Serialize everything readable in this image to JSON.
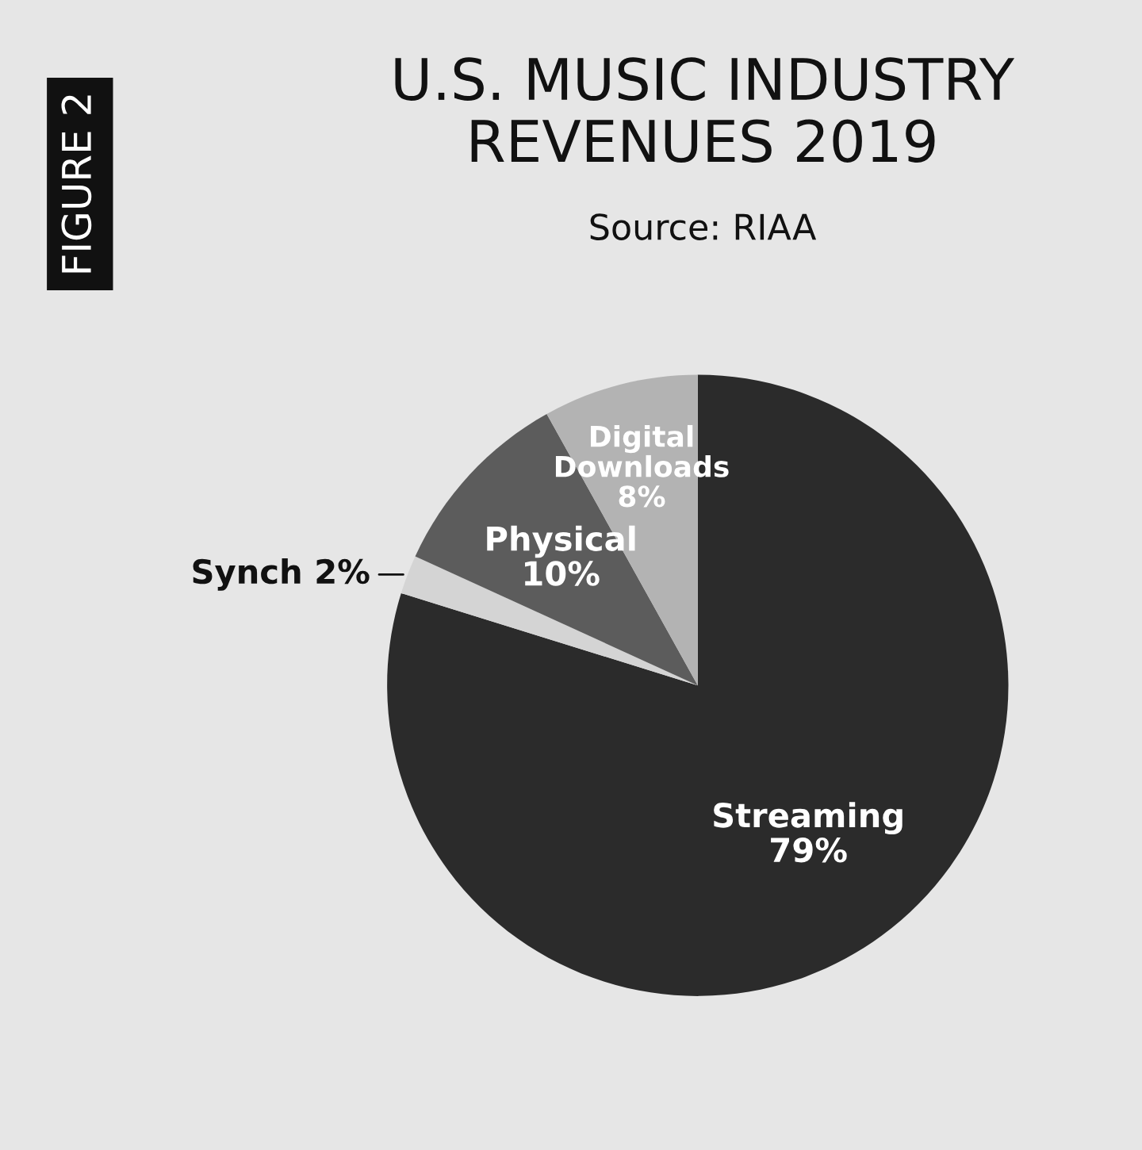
{
  "chart_data": {
    "type": "pie",
    "title": "U.S. MUSIC INDUSTRY\nREVENUES 2019",
    "categories": [
      "Streaming",
      "Synch",
      "Physical",
      "Digital Downloads"
    ],
    "values": [
      79,
      2,
      10,
      8
    ],
    "value_labels": [
      "79%",
      "2%",
      "10%",
      "8%"
    ],
    "colors": [
      "#2b2b2b",
      "#d4d4d4",
      "#5c5c5c",
      "#b3b3b3"
    ],
    "annotations": [
      "FIGURE 2",
      "Source: RIAA"
    ]
  }
}
